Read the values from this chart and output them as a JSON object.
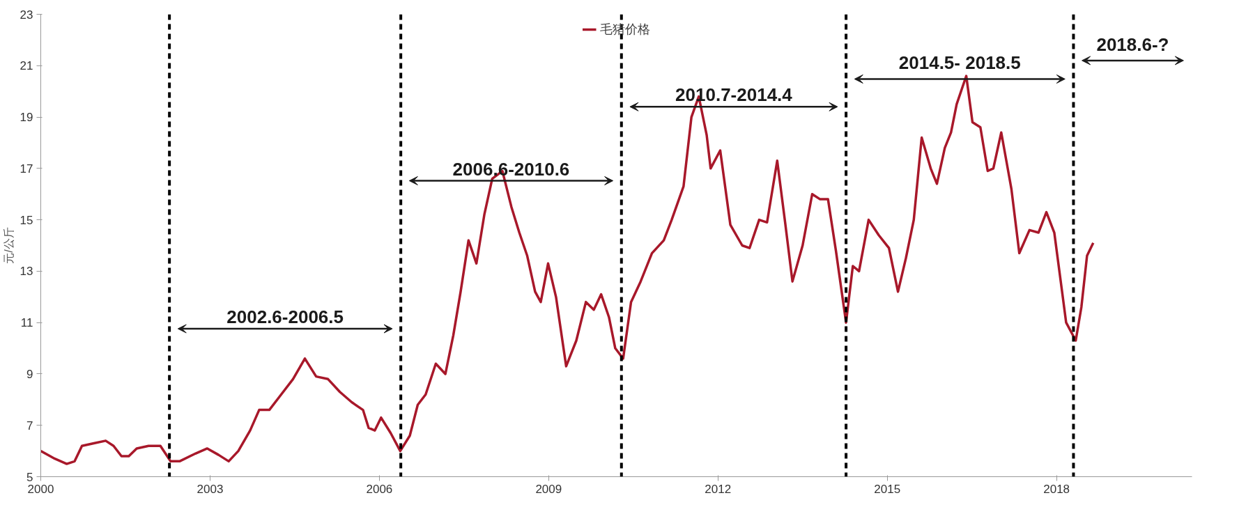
{
  "chart_data": {
    "type": "line",
    "ylabel": "元/公斤",
    "x": [
      2000.0,
      2000.25,
      2000.46,
      2000.6,
      2000.73,
      2000.94,
      2001.15,
      2001.29,
      2001.43,
      2001.56,
      2001.7,
      2001.91,
      2002.12,
      2002.21,
      2002.3,
      2002.46,
      2002.74,
      2002.95,
      2003.15,
      2003.33,
      2003.5,
      2003.71,
      2003.87,
      2004.05,
      2004.26,
      2004.47,
      2004.68,
      2004.88,
      2005.09,
      2005.3,
      2005.51,
      2005.71,
      2005.81,
      2005.92,
      2006.03,
      2006.2,
      2006.37,
      2006.54,
      2006.68,
      2006.82,
      2007.0,
      2007.17,
      2007.31,
      2007.44,
      2007.58,
      2007.72,
      2007.86,
      2008.0,
      2008.18,
      2008.34,
      2008.48,
      2008.62,
      2008.76,
      2008.86,
      2008.99,
      2009.13,
      2009.31,
      2009.49,
      2009.66,
      2009.8,
      2009.93,
      2010.07,
      2010.18,
      2010.32,
      2010.46,
      2010.63,
      2010.83,
      2011.04,
      2011.18,
      2011.39,
      2011.53,
      2011.66,
      2011.8,
      2011.87,
      2012.04,
      2012.22,
      2012.43,
      2012.56,
      2012.73,
      2012.87,
      2013.05,
      2013.19,
      2013.32,
      2013.5,
      2013.67,
      2013.81,
      2013.95,
      2014.09,
      2014.27,
      2014.39,
      2014.5,
      2014.67,
      2014.85,
      2015.03,
      2015.19,
      2015.33,
      2015.47,
      2015.61,
      2015.77,
      2015.88,
      2016.02,
      2016.13,
      2016.23,
      2016.4,
      2016.51,
      2016.65,
      2016.78,
      2016.88,
      2017.02,
      2017.2,
      2017.34,
      2017.52,
      2017.68,
      2017.82,
      2017.96,
      2018.17,
      2018.34,
      2018.44,
      2018.54,
      2018.65
    ],
    "series": [
      {
        "name": "毛猪价格",
        "color": "#a8182a",
        "values": [
          6.0,
          5.7,
          5.5,
          5.6,
          6.2,
          6.3,
          6.4,
          6.2,
          5.8,
          5.8,
          6.1,
          6.2,
          6.2,
          5.9,
          5.6,
          5.6,
          5.9,
          6.1,
          5.85,
          5.6,
          6.0,
          6.8,
          7.6,
          7.6,
          8.2,
          8.8,
          9.6,
          8.9,
          8.8,
          8.3,
          7.9,
          7.6,
          6.9,
          6.8,
          7.3,
          6.7,
          6.0,
          6.6,
          7.8,
          8.2,
          9.4,
          9.0,
          10.5,
          12.2,
          14.2,
          13.3,
          15.2,
          16.6,
          16.9,
          15.5,
          14.5,
          13.6,
          12.2,
          11.8,
          13.3,
          12.0,
          9.3,
          10.3,
          11.8,
          11.5,
          12.1,
          11.2,
          10.0,
          9.6,
          11.8,
          12.6,
          13.7,
          14.2,
          15.0,
          16.3,
          19.0,
          19.8,
          18.3,
          17.0,
          17.7,
          14.8,
          14.0,
          13.9,
          15.0,
          14.9,
          17.3,
          14.9,
          12.6,
          14.0,
          16.0,
          15.8,
          15.8,
          13.8,
          11.0,
          13.2,
          13.0,
          15.0,
          14.4,
          13.9,
          12.2,
          13.5,
          15.0,
          18.2,
          17.0,
          16.4,
          17.8,
          18.4,
          19.5,
          20.6,
          18.8,
          18.6,
          16.9,
          17.0,
          18.4,
          16.2,
          13.7,
          14.6,
          14.5,
          15.3,
          14.5,
          11.0,
          10.3,
          11.6,
          13.6,
          14.1
        ]
      }
    ],
    "xlim": [
      2000,
      2020.4
    ],
    "xticks": [
      2000,
      2003,
      2006,
      2009,
      2012,
      2015,
      2018
    ],
    "ylim": [
      5,
      23
    ],
    "yticks": [
      5,
      7,
      9,
      11,
      13,
      15,
      17,
      19,
      21,
      23
    ],
    "ref_lines": [
      {
        "axis": "x",
        "value": 2002.28,
        "color": "#000000",
        "line_style": "dashed"
      },
      {
        "axis": "x",
        "value": 2006.38,
        "color": "#000000",
        "line_style": "dashed"
      },
      {
        "axis": "x",
        "value": 2010.29,
        "color": "#000000",
        "line_style": "dashed"
      },
      {
        "axis": "x",
        "value": 2014.27,
        "color": "#000000",
        "line_style": "dashed"
      },
      {
        "axis": "x",
        "value": 2018.3,
        "color": "#000000",
        "line_style": "dashed"
      }
    ],
    "annotations": [
      "2002.6-2006.5",
      "2006.6-2010.6",
      "2010.7-2014.4",
      "2014.5- 2018.5",
      "2018.6-?"
    ],
    "legend": "top",
    "grid": false,
    "line_style": "solid",
    "marker": "none"
  }
}
